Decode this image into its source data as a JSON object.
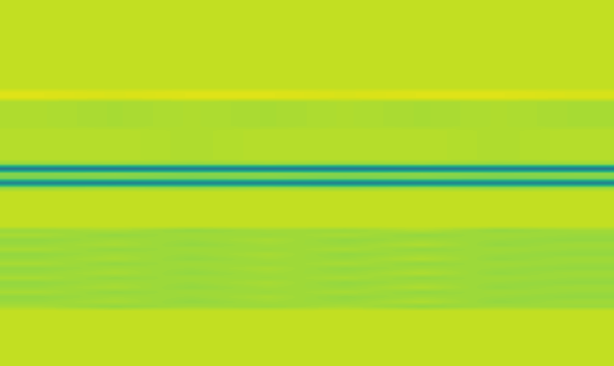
{
  "chart_data": {
    "type": "heatmap",
    "tick_labels": false,
    "color": "viridis",
    "color_range": [
      0,
      1
    ],
    "cells": [
      [
        0.91,
        0.91,
        0.91,
        0.91,
        0.91,
        0.91,
        0.91,
        0.91
      ],
      [
        0.91,
        0.91,
        0.91,
        0.91,
        0.91,
        0.91,
        0.91,
        0.91
      ],
      [
        0.91,
        0.91,
        0.91,
        0.91,
        0.91,
        0.91,
        0.91,
        0.91
      ],
      [
        0.91,
        0.91,
        0.91,
        0.91,
        0.91,
        0.91,
        0.91,
        0.91
      ],
      [
        0.91,
        0.91,
        0.91,
        0.91,
        0.91,
        0.91,
        0.91,
        0.91
      ],
      [
        0.91,
        0.91,
        0.91,
        0.91,
        0.91,
        0.91,
        0.91,
        0.91
      ],
      [
        0.91,
        0.91,
        0.91,
        0.91,
        0.91,
        0.91,
        0.91,
        0.91
      ],
      [
        0.91,
        0.91,
        0.91,
        0.91,
        0.91,
        0.91,
        0.91,
        0.91
      ],
      [
        0.91,
        0.91,
        0.91,
        0.91,
        0.91,
        0.91,
        0.91,
        0.91
      ],
      [
        0.91,
        0.91,
        0.91,
        0.91,
        0.91,
        0.91,
        0.91,
        0.91
      ],
      [
        0.91,
        0.91,
        0.91,
        0.91,
        0.91,
        0.91,
        0.91,
        0.91
      ],
      [
        0.91,
        0.91,
        0.91,
        0.91,
        0.91,
        0.91,
        0.91,
        0.91
      ],
      [
        0.91,
        0.91,
        0.91,
        0.91,
        0.91,
        0.91,
        0.91,
        0.91
      ],
      [
        0.91,
        0.91,
        0.91,
        0.91,
        0.91,
        0.91,
        0.91,
        0.91
      ],
      [
        0.91,
        0.91,
        0.91,
        0.91,
        0.91,
        0.91,
        0.91,
        0.91
      ],
      [
        0.91,
        0.91,
        0.91,
        0.91,
        0.91,
        0.91,
        0.91,
        0.91
      ],
      [
        0.91,
        0.91,
        0.91,
        0.91,
        0.91,
        0.91,
        0.91,
        0.91
      ],
      [
        0.91,
        0.91,
        0.91,
        0.91,
        0.91,
        0.91,
        0.91,
        0.91
      ],
      [
        0.91,
        0.91,
        0.91,
        0.91,
        0.91,
        0.91,
        0.91,
        0.91
      ],
      [
        0.95,
        0.94,
        0.95,
        0.95,
        0.94,
        0.95,
        0.95,
        0.94
      ],
      [
        0.95,
        0.94,
        0.95,
        0.95,
        0.94,
        0.95,
        0.95,
        0.94
      ],
      [
        0.88,
        0.87,
        0.88,
        0.87,
        0.88,
        0.87,
        0.88,
        0.87
      ],
      [
        0.88,
        0.87,
        0.88,
        0.87,
        0.88,
        0.87,
        0.88,
        0.87
      ],
      [
        0.88,
        0.87,
        0.88,
        0.87,
        0.88,
        0.87,
        0.88,
        0.87
      ],
      [
        0.88,
        0.87,
        0.88,
        0.87,
        0.88,
        0.87,
        0.88,
        0.87
      ],
      [
        0.88,
        0.87,
        0.88,
        0.87,
        0.88,
        0.87,
        0.88,
        0.87
      ],
      [
        0.88,
        0.87,
        0.88,
        0.87,
        0.88,
        0.87,
        0.88,
        0.87
      ],
      [
        0.89,
        0.89,
        0.88,
        0.89,
        0.89,
        0.89,
        0.88,
        0.89
      ],
      [
        0.89,
        0.89,
        0.88,
        0.89,
        0.89,
        0.89,
        0.88,
        0.89
      ],
      [
        0.89,
        0.89,
        0.88,
        0.89,
        0.89,
        0.89,
        0.88,
        0.89
      ],
      [
        0.89,
        0.89,
        0.88,
        0.89,
        0.89,
        0.89,
        0.88,
        0.89
      ],
      [
        0.89,
        0.89,
        0.88,
        0.89,
        0.89,
        0.89,
        0.88,
        0.89
      ],
      [
        0.89,
        0.89,
        0.88,
        0.89,
        0.89,
        0.89,
        0.88,
        0.89
      ],
      [
        0.89,
        0.89,
        0.88,
        0.89,
        0.89,
        0.89,
        0.88,
        0.89
      ],
      [
        0.84,
        0.85,
        0.84,
        0.85,
        0.84,
        0.85,
        0.84,
        0.85
      ],
      [
        0.38,
        0.37,
        0.39,
        0.38,
        0.37,
        0.38,
        0.39,
        0.37
      ],
      [
        0.82,
        0.83,
        0.82,
        0.83,
        0.82,
        0.83,
        0.82,
        0.83
      ],
      [
        0.8,
        0.81,
        0.8,
        0.81,
        0.8,
        0.81,
        0.8,
        0.81
      ],
      [
        0.43,
        0.42,
        0.44,
        0.43,
        0.42,
        0.43,
        0.44,
        0.42
      ],
      [
        0.84,
        0.85,
        0.84,
        0.85,
        0.84,
        0.85,
        0.84,
        0.85
      ],
      [
        0.91,
        0.91,
        0.91,
        0.91,
        0.91,
        0.91,
        0.91,
        0.91
      ],
      [
        0.91,
        0.91,
        0.91,
        0.91,
        0.91,
        0.91,
        0.91,
        0.91
      ],
      [
        0.91,
        0.91,
        0.91,
        0.91,
        0.91,
        0.91,
        0.91,
        0.91
      ],
      [
        0.91,
        0.91,
        0.91,
        0.91,
        0.91,
        0.91,
        0.91,
        0.91
      ],
      [
        0.91,
        0.91,
        0.91,
        0.91,
        0.91,
        0.91,
        0.91,
        0.91
      ],
      [
        0.91,
        0.91,
        0.91,
        0.91,
        0.91,
        0.91,
        0.91,
        0.91
      ],
      [
        0.91,
        0.91,
        0.91,
        0.91,
        0.91,
        0.91,
        0.91,
        0.91
      ],
      [
        0.91,
        0.91,
        0.91,
        0.91,
        0.91,
        0.91,
        0.91,
        0.91
      ],
      [
        0.85,
        0.87,
        0.84,
        0.86,
        0.85,
        0.88,
        0.84,
        0.86
      ],
      [
        0.87,
        0.84,
        0.86,
        0.85,
        0.87,
        0.84,
        0.86,
        0.85
      ],
      [
        0.84,
        0.86,
        0.85,
        0.87,
        0.84,
        0.86,
        0.85,
        0.84
      ],
      [
        0.85,
        0.87,
        0.84,
        0.86,
        0.85,
        0.88,
        0.84,
        0.86
      ],
      [
        0.87,
        0.84,
        0.86,
        0.85,
        0.87,
        0.84,
        0.86,
        0.85
      ],
      [
        0.84,
        0.86,
        0.85,
        0.87,
        0.84,
        0.86,
        0.85,
        0.84
      ],
      [
        0.85,
        0.87,
        0.84,
        0.86,
        0.85,
        0.88,
        0.84,
        0.86
      ],
      [
        0.87,
        0.84,
        0.86,
        0.85,
        0.87,
        0.84,
        0.86,
        0.85
      ],
      [
        0.84,
        0.86,
        0.85,
        0.87,
        0.84,
        0.86,
        0.85,
        0.84
      ],
      [
        0.85,
        0.87,
        0.84,
        0.86,
        0.85,
        0.88,
        0.84,
        0.86
      ],
      [
        0.87,
        0.84,
        0.86,
        0.85,
        0.87,
        0.84,
        0.86,
        0.85
      ],
      [
        0.84,
        0.86,
        0.85,
        0.87,
        0.84,
        0.86,
        0.85,
        0.84
      ],
      [
        0.85,
        0.87,
        0.84,
        0.86,
        0.85,
        0.88,
        0.84,
        0.86
      ],
      [
        0.87,
        0.84,
        0.86,
        0.85,
        0.87,
        0.84,
        0.86,
        0.85
      ],
      [
        0.84,
        0.86,
        0.85,
        0.87,
        0.84,
        0.86,
        0.85,
        0.84
      ],
      [
        0.85,
        0.87,
        0.84,
        0.86,
        0.85,
        0.88,
        0.84,
        0.86
      ],
      [
        0.87,
        0.84,
        0.86,
        0.85,
        0.87,
        0.84,
        0.86,
        0.85
      ],
      [
        0.91,
        0.91,
        0.91,
        0.91,
        0.91,
        0.91,
        0.91,
        0.91
      ],
      [
        0.91,
        0.91,
        0.91,
        0.91,
        0.91,
        0.91,
        0.91,
        0.91
      ],
      [
        0.91,
        0.91,
        0.91,
        0.91,
        0.91,
        0.91,
        0.91,
        0.91
      ],
      [
        0.91,
        0.91,
        0.91,
        0.91,
        0.91,
        0.91,
        0.91,
        0.91
      ],
      [
        0.91,
        0.91,
        0.91,
        0.91,
        0.91,
        0.91,
        0.91,
        0.91
      ],
      [
        0.91,
        0.91,
        0.91,
        0.91,
        0.91,
        0.91,
        0.91,
        0.91
      ],
      [
        0.91,
        0.91,
        0.91,
        0.91,
        0.91,
        0.91,
        0.91,
        0.91
      ],
      [
        0.91,
        0.91,
        0.91,
        0.91,
        0.91,
        0.91,
        0.91,
        0.91
      ],
      [
        0.91,
        0.91,
        0.91,
        0.91,
        0.91,
        0.91,
        0.91,
        0.91
      ],
      [
        0.91,
        0.91,
        0.91,
        0.91,
        0.91,
        0.91,
        0.91,
        0.91
      ],
      [
        0.91,
        0.91,
        0.91,
        0.91,
        0.91,
        0.91,
        0.91,
        0.91
      ],
      [
        0.91,
        0.91,
        0.91,
        0.91,
        0.91,
        0.91,
        0.91,
        0.91
      ]
    ]
  }
}
